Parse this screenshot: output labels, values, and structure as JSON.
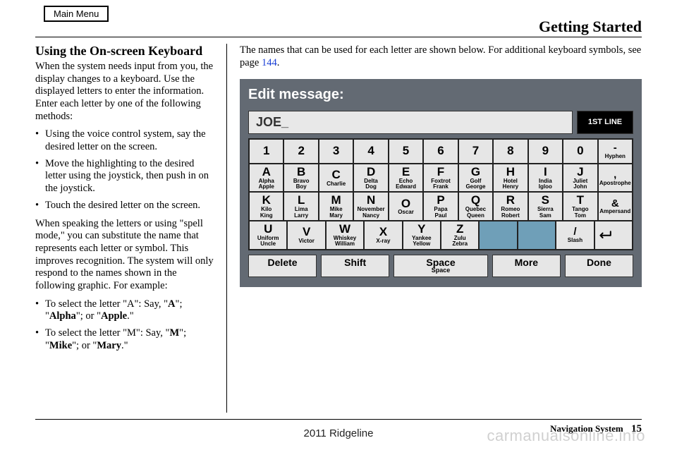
{
  "mainMenuBtn": "Main Menu",
  "sectionTitle": "Getting Started",
  "left": {
    "heading": "Using the On-screen Keyboard",
    "p1": "When the system needs input from you, the display changes to a keyboard. Use the displayed letters to enter the information. Enter each letter by one of the following methods:",
    "b1": "Using the voice control system, say the desired letter on the screen.",
    "b2": "Move the highlighting to the desired letter using the joystick, then push in on the joystick.",
    "b3": "Touch the desired letter on the screen.",
    "p2": "When speaking the letters or using \"spell mode,\" you can substitute the name that represents each letter or symbol. This improves recognition. The system will only respond to the names shown in the following graphic. For example:",
    "ex1a": "To select the letter \"A\": Say, \"",
    "ex1b": "A",
    "ex1c": "\"; \"",
    "ex1d": "Alpha",
    "ex1e": "\"; or \"",
    "ex1f": "Apple",
    "ex1g": ".\"",
    "ex2a": "To select the letter \"M\": Say, \"",
    "ex2b": "M",
    "ex2c": "\"; \"",
    "ex2d": "Mike",
    "ex2e": "\"; or \"",
    "ex2f": "Mary",
    "ex2g": ".\""
  },
  "right": {
    "intro_a": "The names that can be used for each letter are shown below. For additional keyboard symbols, see page ",
    "intro_link": "144",
    "intro_b": "."
  },
  "kb": {
    "title": "Edit message:",
    "entry": "JOE_",
    "lineBtn": "1ST LINE",
    "row1": [
      "1",
      "2",
      "3",
      "4",
      "5",
      "6",
      "7",
      "8",
      "9",
      "0"
    ],
    "row1_sym": {
      "big": "-",
      "sub": "Hyphen"
    },
    "row2": [
      {
        "big": "A",
        "sub": "Alpha\nApple"
      },
      {
        "big": "B",
        "sub": "Bravo\nBoy"
      },
      {
        "big": "C",
        "sub": "Charlie"
      },
      {
        "big": "D",
        "sub": "Delta\nDog"
      },
      {
        "big": "E",
        "sub": "Echo\nEdward"
      },
      {
        "big": "F",
        "sub": "Foxtrot\nFrank"
      },
      {
        "big": "G",
        "sub": "Golf\nGeorge"
      },
      {
        "big": "H",
        "sub": "Hotel\nHenry"
      },
      {
        "big": "I",
        "sub": "India\nIgloo"
      },
      {
        "big": "J",
        "sub": "Juliet\nJohn"
      }
    ],
    "row2_sym": {
      "big": ",",
      "sub": "Apostrophe"
    },
    "row3": [
      {
        "big": "K",
        "sub": "Kilo\nKing"
      },
      {
        "big": "L",
        "sub": "Lima\nLarry"
      },
      {
        "big": "M",
        "sub": "Mike\nMary"
      },
      {
        "big": "N",
        "sub": "November\nNancy"
      },
      {
        "big": "O",
        "sub": "Oscar"
      },
      {
        "big": "P",
        "sub": "Papa\nPaul"
      },
      {
        "big": "Q",
        "sub": "Quebec\nQueen"
      },
      {
        "big": "R",
        "sub": "Romeo\nRobert"
      },
      {
        "big": "S",
        "sub": "Sierra\nSam"
      },
      {
        "big": "T",
        "sub": "Tango\nTom"
      }
    ],
    "row3_sym": {
      "big": "&",
      "sub": "Ampersand"
    },
    "row4": [
      {
        "big": "U",
        "sub": "Uniform\nUncle"
      },
      {
        "big": "V",
        "sub": "Victor"
      },
      {
        "big": "W",
        "sub": "Whiskey\nWilliam"
      },
      {
        "big": "X",
        "sub": "X-ray"
      },
      {
        "big": "Y",
        "sub": "Yankee\nYellow"
      },
      {
        "big": "Z",
        "sub": "Zulu\nZebra"
      }
    ],
    "row4_slash": {
      "big": "/",
      "sub": "Slash"
    },
    "bottom": {
      "delete": "Delete",
      "shift": "Shift",
      "space_big": "Space",
      "space_sub": "Space",
      "more": "More",
      "done": "Done"
    }
  },
  "footer": {
    "model": "2011 Ridgeline",
    "navLabel": "Navigation System",
    "page": "15",
    "watermark": "carmanualsonline.info"
  },
  "colors": {
    "kb_bg": "#636a73",
    "key_bg": "#e6e6e6",
    "blank_bg": "#6f9fb8",
    "link": "#1a3fd6"
  }
}
